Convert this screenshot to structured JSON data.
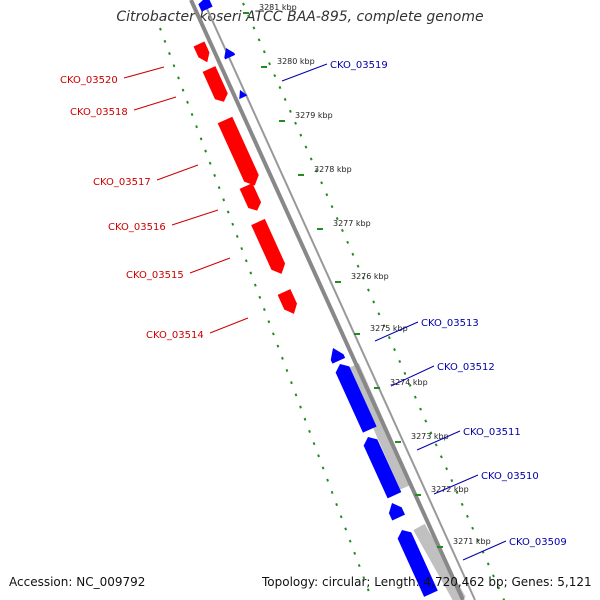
{
  "title": "Citrobacter koseri ATCC BAA-895, complete genome",
  "accession": "Accession: NC_009792",
  "summary": "Topology: circular; Length: 4,720,462 bp; Genes: 5,121",
  "colors": {
    "forward_gene": "#ff0000",
    "reverse_gene": "#0000ff",
    "backbone": "#888888",
    "shadow": "#c0c0c0",
    "tick_marks": "#228b22",
    "forward_label": "#cc0000",
    "reverse_label": "#0000aa"
  },
  "scale_labels": [
    "3281 kbp",
    "3280 kbp",
    "3279 kbp",
    "3278 kbp",
    "3277 kbp",
    "3276 kbp",
    "3275 kbp",
    "3274 kbp",
    "3273 kbp",
    "3272 kbp",
    "3271 kbp"
  ],
  "forward_gene_labels": [
    "CKO_03520",
    "CKO_03518",
    "CKO_03517",
    "CKO_03516",
    "CKO_03515",
    "CKO_03514"
  ],
  "reverse_gene_labels": [
    "CKO_03519",
    "CKO_03513",
    "CKO_03512",
    "CKO_03511",
    "CKO_03510",
    "CKO_03509"
  ]
}
